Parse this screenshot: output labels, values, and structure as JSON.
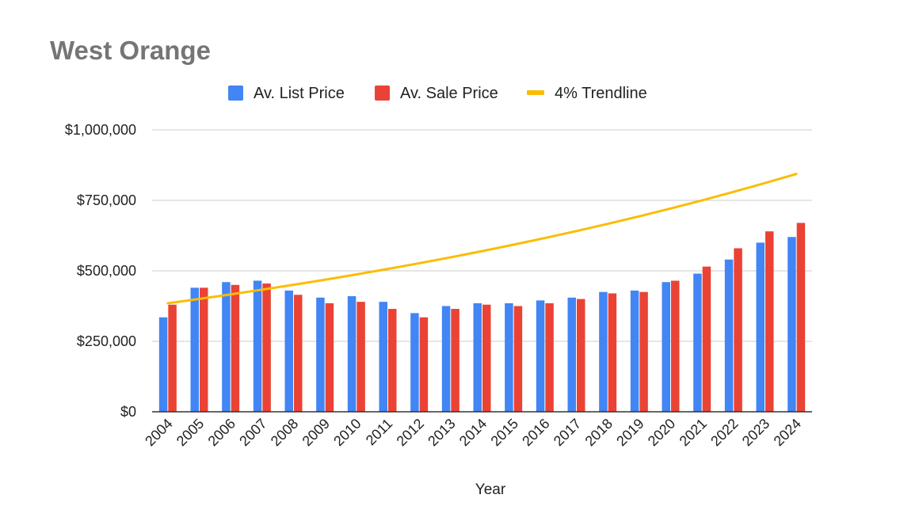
{
  "chart_data": {
    "type": "bar",
    "title": "West Orange",
    "xlabel": "Year",
    "ylabel": "",
    "ylim": [
      0,
      1000000
    ],
    "y_ticks": [
      "$0",
      "$250,000",
      "$500,000",
      "$750,000",
      "$1,000,000"
    ],
    "legend_position": "top",
    "grid": true,
    "categories": [
      "2004",
      "2005",
      "2006",
      "2007",
      "2008",
      "2009",
      "2010",
      "2011",
      "2012",
      "2013",
      "2014",
      "2015",
      "2016",
      "2017",
      "2018",
      "2019",
      "2020",
      "2021",
      "2022",
      "2023",
      "2024"
    ],
    "series": [
      {
        "name": "Av. List Price",
        "type": "bar",
        "color": "#4285f4",
        "values": [
          335000,
          440000,
          460000,
          465000,
          430000,
          405000,
          410000,
          390000,
          350000,
          375000,
          385000,
          385000,
          395000,
          405000,
          425000,
          430000,
          460000,
          490000,
          540000,
          600000,
          620000
        ]
      },
      {
        "name": "Av. Sale Price",
        "type": "bar",
        "color": "#ea4335",
        "values": [
          380000,
          440000,
          450000,
          455000,
          415000,
          385000,
          390000,
          365000,
          335000,
          365000,
          380000,
          375000,
          385000,
          400000,
          420000,
          425000,
          465000,
          515000,
          580000,
          640000,
          670000
        ]
      },
      {
        "name": "4% Trendline",
        "type": "line",
        "color": "#fbbc04",
        "values": [
          385000,
          400400,
          416416,
          433073,
          450396,
          468411,
          487148,
          506634,
          526899,
          547975,
          569894,
          592690,
          616397,
          641053,
          666695,
          693363,
          721097,
          749941,
          779938,
          811136,
          843581
        ]
      }
    ]
  }
}
